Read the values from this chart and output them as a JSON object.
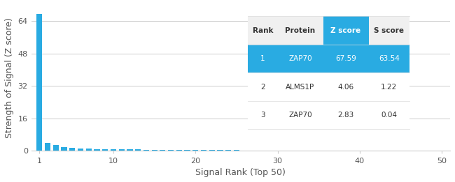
{
  "bar_color": "#29ABE2",
  "bar_values": [
    67.59,
    4.06,
    2.83,
    1.8,
    1.5,
    1.3,
    1.1,
    1.0,
    0.9,
    0.85,
    0.8,
    0.75,
    0.7,
    0.65,
    0.6,
    0.55,
    0.5,
    0.48,
    0.46,
    0.44,
    0.42,
    0.4,
    0.38,
    0.36,
    0.34,
    0.32,
    0.3,
    0.28,
    0.26,
    0.24,
    0.22,
    0.2,
    0.19,
    0.18,
    0.17,
    0.16,
    0.15,
    0.14,
    0.13,
    0.12,
    0.11,
    0.1,
    0.09,
    0.08,
    0.07,
    0.06,
    0.05,
    0.04,
    0.03,
    0.02
  ],
  "xlabel": "Signal Rank (Top 50)",
  "ylabel": "Strength of Signal (Z score)",
  "xlim": [
    0,
    51
  ],
  "ylim": [
    0,
    72
  ],
  "yticks": [
    0,
    16,
    32,
    48,
    64
  ],
  "xticks": [
    1,
    10,
    20,
    30,
    40,
    50
  ],
  "grid_color": "#cccccc",
  "bg_color": "#ffffff",
  "table_header_bg": "#29ABE2",
  "table_header_other_bg": "#f0f0f0",
  "table_row1_bg": "#29ABE2",
  "table_row_bg": "#ffffff",
  "table_header_color": "#ffffff",
  "table_header_other_color": "#333333",
  "table_row1_color": "#ffffff",
  "table_row_color": "#333333",
  "table_line_color": "#dddddd",
  "table_columns": [
    "Rank",
    "Protein",
    "Z score",
    "S score"
  ],
  "table_data": [
    [
      "1",
      "ZAP70",
      "67.59",
      "63.54"
    ],
    [
      "2",
      "ALMS1P",
      "4.06",
      "1.22"
    ],
    [
      "3",
      "ZAP70",
      "2.83",
      "0.04"
    ]
  ],
  "font_size_axis_label": 9,
  "font_size_tick": 8,
  "font_size_table": 7.5
}
